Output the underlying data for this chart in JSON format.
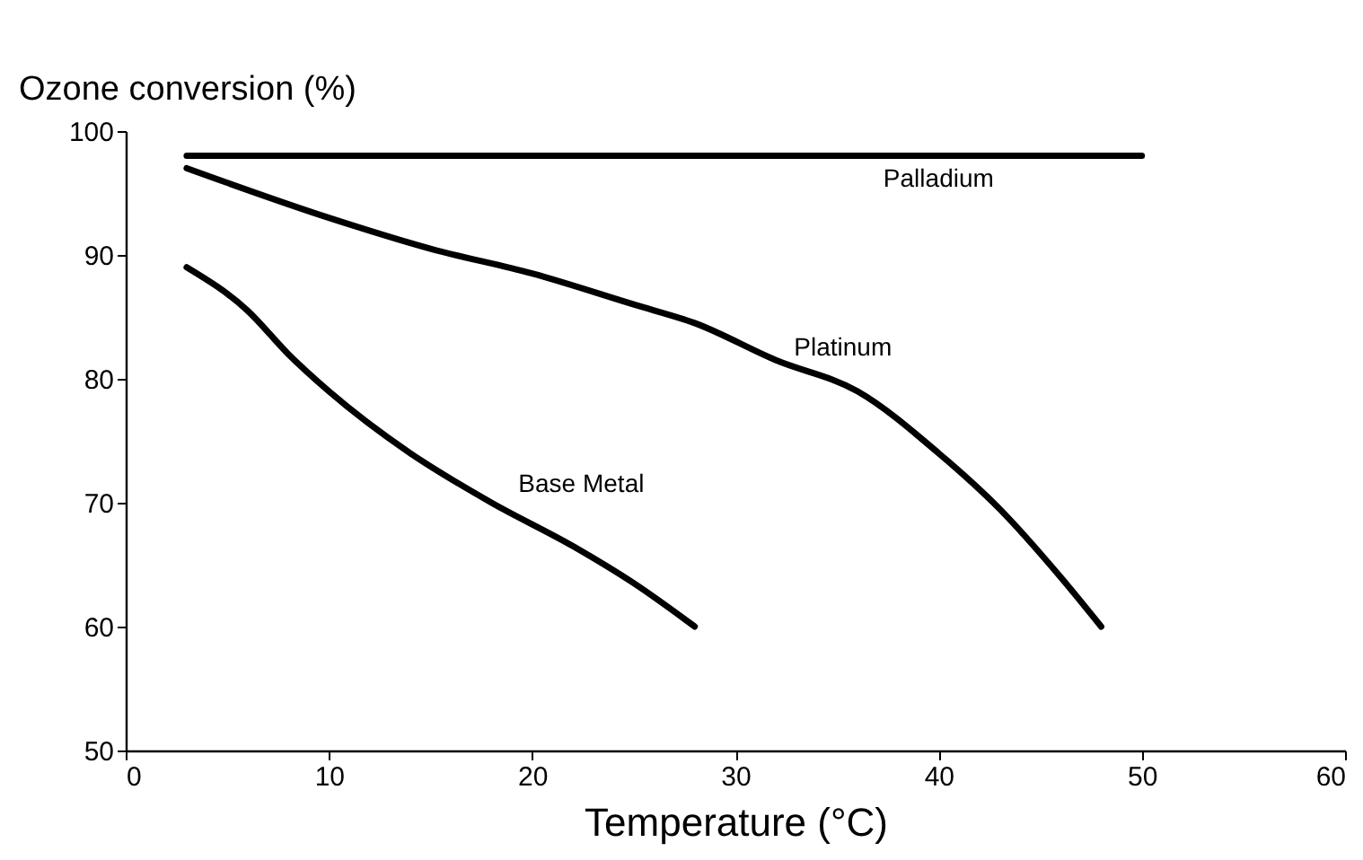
{
  "chart_data": {
    "type": "line",
    "ylabel": "Ozone conversion (%)",
    "xlabel": "Temperature (°C)",
    "xlim": [
      0,
      60
    ],
    "xticks": [
      0,
      10,
      20,
      30,
      40,
      50,
      60
    ],
    "ylim": [
      50,
      100
    ],
    "yticks": [
      50,
      60,
      70,
      80,
      90,
      100
    ],
    "grid": false,
    "legend": false,
    "marker": "none",
    "line_style": "solid",
    "series": [
      {
        "name": "Palladium",
        "color": "#000000",
        "x": [
          3,
          10,
          20,
          30,
          40,
          50
        ],
        "values": [
          98,
          98,
          98,
          98,
          98,
          98
        ]
      },
      {
        "name": "Platinum",
        "color": "#000000",
        "x": [
          3,
          10,
          15,
          20,
          25,
          28,
          32,
          36,
          40,
          43,
          46,
          48
        ],
        "values": [
          97,
          93,
          90.5,
          88.5,
          86,
          84.5,
          81.5,
          79,
          74,
          69.5,
          64,
          60
        ]
      },
      {
        "name": "Base Metal",
        "color": "#000000",
        "x": [
          3,
          6,
          8,
          10,
          14,
          18,
          22,
          25,
          28
        ],
        "values": [
          89,
          85.5,
          82,
          79,
          74,
          70,
          66.5,
          63.5,
          60
        ]
      }
    ]
  }
}
